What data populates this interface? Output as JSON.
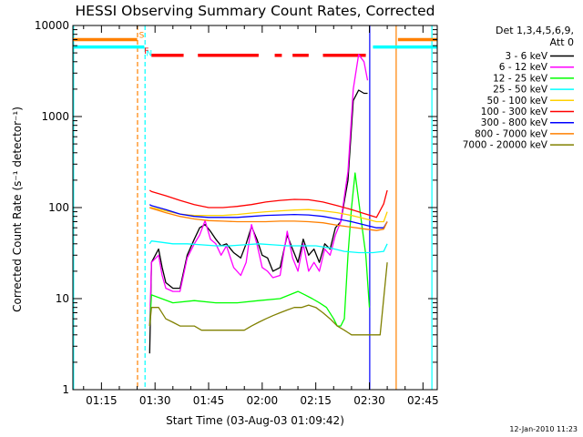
{
  "chart_data": {
    "type": "line",
    "title": "HESSI Observing Summary Count Rates, Corrected",
    "xlabel": "Start Time (03-Aug-03 01:09:42)",
    "ylabel": "Corrected Count Rate (s⁻¹ detector⁻¹)",
    "ylim": [
      1,
      10000
    ],
    "yscale": "log",
    "xlim_minutes_after_0100": [
      67,
      169
    ],
    "x_ticks": [
      {
        "label": "01:15",
        "min": 75
      },
      {
        "label": "01:30",
        "min": 90
      },
      {
        "label": "01:45",
        "min": 105
      },
      {
        "label": "02:00",
        "min": 120
      },
      {
        "label": "02:15",
        "min": 135
      },
      {
        "label": "02:30",
        "min": 150
      },
      {
        "label": "02:45",
        "min": 165
      }
    ],
    "y_ticks": [
      {
        "label": "1",
        "value": 1
      },
      {
        "label": "10",
        "value": 10
      },
      {
        "label": "100",
        "value": 100
      },
      {
        "label": "1000",
        "value": 1000
      },
      {
        "label": "10000",
        "value": 10000
      }
    ],
    "legend_header": [
      "Det 1,3,4,5,6,9,",
      "Att 0"
    ],
    "legend_position": "right",
    "timestamp": "12-Jan-2010 11:23",
    "series": [
      {
        "name": "3 - 6 keV",
        "color": "#000000",
        "x": [
          88.5,
          89,
          91,
          92,
          93,
          95,
          97,
          99,
          101,
          102.5,
          104,
          105.5,
          107,
          108.5,
          110,
          112,
          114,
          115.5,
          117,
          118.5,
          120,
          121.5,
          123,
          125,
          127,
          128.5,
          130,
          131.5,
          133,
          134.5,
          136,
          137.5,
          139,
          140.5,
          142,
          144,
          145.5,
          147,
          148.5,
          149.5
        ],
        "y": [
          2.5,
          25,
          35,
          22,
          15,
          13,
          13,
          30,
          45,
          60,
          65,
          55,
          45,
          38,
          40,
          32,
          28,
          40,
          62,
          45,
          30,
          28,
          20,
          22,
          50,
          35,
          25,
          45,
          30,
          35,
          25,
          40,
          35,
          60,
          70,
          200,
          1500,
          1950,
          1800,
          1800
        ]
      },
      {
        "name": "6 - 12 keV",
        "color": "#ff00ff",
        "x": [
          88.5,
          89,
          91,
          92,
          93,
          95,
          97,
          99,
          101,
          102.5,
          104,
          105.5,
          107,
          108.5,
          110,
          112,
          114,
          115.5,
          117,
          118.5,
          120,
          121.5,
          123,
          125,
          127,
          128.5,
          130,
          131.5,
          133,
          134.5,
          136,
          137.5,
          139,
          140.5,
          142,
          144,
          145.5,
          147,
          148.5,
          149.5
        ],
        "y": [
          5,
          25,
          30,
          18,
          13,
          12,
          12,
          28,
          40,
          50,
          72,
          45,
          40,
          30,
          38,
          22,
          18,
          25,
          65,
          40,
          22,
          20,
          17,
          18,
          55,
          28,
          20,
          40,
          20,
          25,
          20,
          35,
          30,
          50,
          70,
          250,
          2000,
          4800,
          4000,
          2500
        ]
      },
      {
        "name": "12 - 25 keV",
        "color": "#00ff00",
        "x": [
          88.5,
          89,
          95,
          101,
          107,
          113,
          119,
          125,
          130,
          132,
          134,
          136,
          138,
          140,
          141,
          142,
          143,
          144,
          145,
          146,
          147,
          148,
          149,
          150
        ],
        "y": [
          5,
          11,
          9,
          9.5,
          9,
          9,
          9.5,
          10,
          12,
          11,
          10,
          9,
          8,
          6,
          5,
          5,
          6,
          30,
          100,
          240,
          120,
          60,
          30,
          8
        ]
      },
      {
        "name": "25 - 50 keV",
        "color": "#00ffff",
        "x": [
          88.5,
          89,
          91,
          95,
          99,
          103,
          107,
          111,
          115,
          119,
          123,
          127,
          131,
          135,
          139,
          143,
          147,
          151,
          154,
          155
        ],
        "y": [
          40,
          43,
          42,
          40,
          40,
          39,
          38,
          38,
          39,
          40,
          39,
          38,
          38,
          38,
          36,
          33,
          32,
          32,
          33,
          40
        ]
      },
      {
        "name": "50 - 100 keV",
        "color": "#ffd000",
        "x": [
          88.5,
          89,
          93,
          97,
          101,
          105,
          109,
          113,
          117,
          121,
          125,
          129,
          133,
          137,
          141,
          145,
          149,
          152,
          154,
          155
        ],
        "y": [
          100,
          100,
          92,
          85,
          82,
          82,
          82,
          84,
          87,
          90,
          92,
          94,
          95,
          92,
          88,
          82,
          75,
          70,
          70,
          90
        ]
      },
      {
        "name": "100 - 300 keV",
        "color": "#ff0000",
        "x": [
          88.5,
          89,
          93,
          97,
          101,
          105,
          109,
          113,
          117,
          121,
          125,
          129,
          133,
          137,
          141,
          145,
          149,
          152,
          154,
          155
        ],
        "y": [
          155,
          150,
          135,
          120,
          108,
          100,
          100,
          103,
          108,
          115,
          120,
          123,
          122,
          115,
          105,
          95,
          85,
          78,
          110,
          155
        ]
      },
      {
        "name": "300 - 800 keV",
        "color": "#0000ff",
        "x": [
          88.5,
          89,
          93,
          97,
          101,
          105,
          109,
          113,
          117,
          121,
          125,
          129,
          133,
          137,
          141,
          145,
          149,
          152,
          154,
          155
        ],
        "y": [
          108,
          105,
          95,
          85,
          80,
          78,
          78,
          78,
          80,
          82,
          83,
          84,
          83,
          80,
          75,
          70,
          64,
          60,
          60,
          70
        ]
      },
      {
        "name": "800 - 7000 keV",
        "color": "#ff8000",
        "x": [
          88.5,
          89,
          93,
          97,
          101,
          105,
          109,
          113,
          117,
          121,
          125,
          129,
          133,
          137,
          141,
          145,
          149,
          152,
          154,
          155
        ],
        "y": [
          100,
          98,
          88,
          80,
          75,
          72,
          71,
          70,
          70,
          70,
          71,
          71,
          70,
          68,
          64,
          61,
          58,
          56,
          58,
          70
        ]
      },
      {
        "name": "7000 - 20000 keV",
        "color": "#808000",
        "x": [
          88.5,
          89,
          91,
          93,
          95,
          97,
          99,
          101,
          103,
          105,
          107,
          109,
          111,
          113,
          115,
          117,
          119,
          121,
          123,
          125,
          127,
          129,
          131,
          133,
          135,
          137,
          139,
          141,
          143,
          145,
          147,
          149,
          151,
          153,
          154,
          155
        ],
        "y": [
          5,
          8,
          8,
          6,
          5.5,
          5,
          5,
          5,
          4.5,
          4.5,
          4.5,
          4.5,
          4.5,
          4.5,
          4.5,
          5,
          5.5,
          6,
          6.5,
          7,
          7.5,
          8,
          8,
          8.5,
          8,
          7,
          6,
          5,
          4.5,
          4,
          4,
          4,
          4,
          4,
          10,
          25
        ]
      }
    ],
    "flags": [
      {
        "label": "S",
        "color": "#ff8000",
        "level": 7000,
        "segments": [
          [
            67,
            85
          ],
          [
            158,
            169
          ]
        ]
      },
      {
        "label": "N",
        "color": "#00ffff",
        "level": 5800,
        "segments": [
          [
            67,
            87
          ],
          [
            151,
            169
          ]
        ]
      },
      {
        "label": "F",
        "color": "#ff0000",
        "level": 4700,
        "segments": [
          [
            89,
            98
          ],
          [
            102,
            119
          ],
          [
            123.5,
            125.5
          ],
          [
            128.5,
            133
          ],
          [
            137,
            149
          ]
        ]
      }
    ],
    "markers": [
      {
        "color": "#ff8000",
        "style": "dashed",
        "x": 85.1
      },
      {
        "color": "#00ffff",
        "style": "dashed",
        "x": 87.2
      },
      {
        "color": "#0000ff",
        "style": "solid",
        "x": 150.1
      },
      {
        "color": "#ff8000",
        "style": "solid",
        "x": 157.5
      },
      {
        "color": "#00ffff",
        "style": "solid",
        "x": 67.2
      },
      {
        "color": "#00ffff",
        "style": "solid",
        "x": 167.5
      }
    ]
  }
}
